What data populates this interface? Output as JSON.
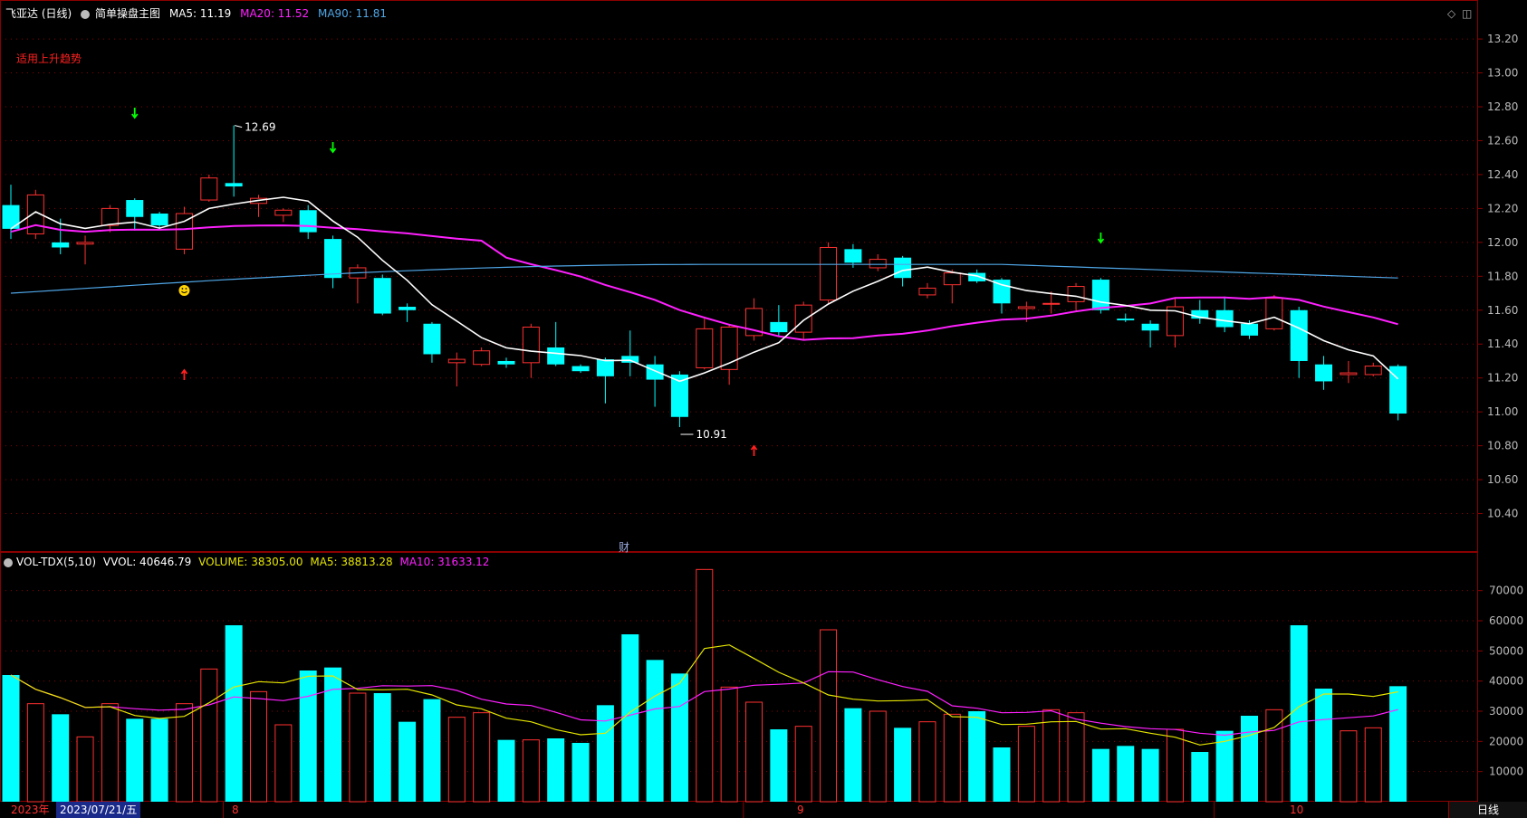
{
  "header": {
    "stock": "飞亚达 (日线)",
    "chart_name": "简单操盘主图",
    "ma5": "MA5: 11.19",
    "ma20": "MA20: 11.52",
    "ma90": "MA90: 11.81",
    "hint": "适用上升趋势"
  },
  "colors": {
    "up": "#ff3030",
    "down": "#00ffff",
    "ma5": "#ffffff",
    "ma20": "#ff20ff",
    "ma90": "#4fa6e6",
    "grid": "#8b0000",
    "vol_ma5": "#e6e600",
    "vol_ma10": "#ff20ff",
    "axis_text": "#bbbbbb"
  },
  "price_axis": {
    "ticks": [
      "13.20",
      "13.00",
      "12.80",
      "12.60",
      "12.40",
      "12.20",
      "12.00",
      "11.80",
      "11.60",
      "11.40",
      "11.20",
      "11.00",
      "10.80",
      "10.60",
      "10.40"
    ]
  },
  "annotations": {
    "high": "12.69",
    "low": "10.91",
    "finance_marker": "财"
  },
  "volume_header": {
    "name": "VOL-TDX(5,10)",
    "vvol": "VVOL: 40646.79",
    "volume": "VOLUME: 38305.00",
    "ma5": "MA5: 38813.28",
    "ma10": "MA10: 31633.12"
  },
  "volume_axis": {
    "ticks": [
      "70000",
      "60000",
      "50000",
      "40000",
      "30000",
      "20000",
      "10000"
    ]
  },
  "date_bar": {
    "year": "2023年",
    "selected_date": "2023/07/21/五",
    "month_marks": [
      "8",
      "9",
      "10"
    ]
  },
  "period_label": "日线",
  "chart_data": {
    "type": "candlestick",
    "ylim": [
      10.2,
      13.35
    ],
    "vol_ylim": [
      0,
      78000
    ],
    "candles": [
      {
        "o": 12.22,
        "c": 12.08,
        "h": 12.34,
        "l": 12.02,
        "v": 42000
      },
      {
        "o": 12.05,
        "c": 12.28,
        "h": 12.31,
        "l": 12.02,
        "v": 32500
      },
      {
        "o": 12.0,
        "c": 11.97,
        "h": 12.14,
        "l": 11.93,
        "v": 29000
      },
      {
        "o": 11.99,
        "c": 12.0,
        "h": 12.04,
        "l": 11.87,
        "v": 21500
      },
      {
        "o": 12.1,
        "c": 12.2,
        "h": 12.22,
        "l": 12.06,
        "v": 32500
      },
      {
        "o": 12.25,
        "c": 12.15,
        "h": 12.26,
        "l": 12.07,
        "v": 27500
      },
      {
        "o": 12.17,
        "c": 12.1,
        "h": 12.18,
        "l": 12.08,
        "v": 27500
      },
      {
        "o": 11.96,
        "c": 12.17,
        "h": 12.21,
        "l": 11.93,
        "v": 32500
      },
      {
        "o": 12.25,
        "c": 12.38,
        "h": 12.4,
        "l": 12.24,
        "v": 44000
      },
      {
        "o": 12.35,
        "c": 12.33,
        "h": 12.69,
        "l": 12.27,
        "v": 58500
      },
      {
        "o": 12.23,
        "c": 12.26,
        "h": 12.28,
        "l": 12.15,
        "v": 36500
      },
      {
        "o": 12.16,
        "c": 12.19,
        "h": 12.2,
        "l": 12.12,
        "v": 25500
      },
      {
        "o": 12.19,
        "c": 12.06,
        "h": 12.22,
        "l": 12.02,
        "v": 43500
      },
      {
        "o": 12.02,
        "c": 11.79,
        "h": 12.04,
        "l": 11.73,
        "v": 44500
      },
      {
        "o": 11.79,
        "c": 11.85,
        "h": 11.87,
        "l": 11.64,
        "v": 36000
      },
      {
        "o": 11.79,
        "c": 11.58,
        "h": 11.81,
        "l": 11.57,
        "v": 36000
      },
      {
        "o": 11.62,
        "c": 11.6,
        "h": 11.64,
        "l": 11.53,
        "v": 26500
      },
      {
        "o": 11.52,
        "c": 11.34,
        "h": 11.53,
        "l": 11.29,
        "v": 34000
      },
      {
        "o": 11.29,
        "c": 11.31,
        "h": 11.35,
        "l": 11.15,
        "v": 28000
      },
      {
        "o": 11.28,
        "c": 11.36,
        "h": 11.38,
        "l": 11.27,
        "v": 29500
      },
      {
        "o": 11.3,
        "c": 11.28,
        "h": 11.32,
        "l": 11.26,
        "v": 20500
      },
      {
        "o": 11.29,
        "c": 11.5,
        "h": 11.52,
        "l": 11.2,
        "v": 20500
      },
      {
        "o": 11.38,
        "c": 11.28,
        "h": 11.53,
        "l": 11.27,
        "v": 21000
      },
      {
        "o": 11.27,
        "c": 11.24,
        "h": 11.28,
        "l": 11.23,
        "v": 19500
      },
      {
        "o": 11.31,
        "c": 11.21,
        "h": 11.32,
        "l": 11.05,
        "v": 32000
      },
      {
        "o": 11.33,
        "c": 11.29,
        "h": 11.48,
        "l": 11.21,
        "v": 55500
      },
      {
        "o": 11.28,
        "c": 11.19,
        "h": 11.33,
        "l": 11.03,
        "v": 47000
      },
      {
        "o": 11.22,
        "c": 10.97,
        "h": 11.24,
        "l": 10.91,
        "v": 42500
      },
      {
        "o": 11.26,
        "c": 11.49,
        "h": 11.55,
        "l": 11.25,
        "v": 77000
      },
      {
        "o": 11.25,
        "c": 11.5,
        "h": 11.52,
        "l": 11.16,
        "v": 38000
      },
      {
        "o": 11.45,
        "c": 11.61,
        "h": 11.67,
        "l": 11.42,
        "v": 33000
      },
      {
        "o": 11.53,
        "c": 11.47,
        "h": 11.63,
        "l": 11.45,
        "v": 24000
      },
      {
        "o": 11.47,
        "c": 11.63,
        "h": 11.65,
        "l": 11.43,
        "v": 25000
      },
      {
        "o": 11.66,
        "c": 11.97,
        "h": 12.0,
        "l": 11.64,
        "v": 57000
      },
      {
        "o": 11.96,
        "c": 11.88,
        "h": 11.99,
        "l": 11.85,
        "v": 31000
      },
      {
        "o": 11.85,
        "c": 11.9,
        "h": 11.93,
        "l": 11.83,
        "v": 30000
      },
      {
        "o": 11.91,
        "c": 11.79,
        "h": 11.92,
        "l": 11.74,
        "v": 24500
      },
      {
        "o": 11.69,
        "c": 11.73,
        "h": 11.76,
        "l": 11.67,
        "v": 26500
      },
      {
        "o": 11.75,
        "c": 11.82,
        "h": 11.84,
        "l": 11.64,
        "v": 29000
      },
      {
        "o": 11.82,
        "c": 11.77,
        "h": 11.84,
        "l": 11.76,
        "v": 30000
      },
      {
        "o": 11.78,
        "c": 11.64,
        "h": 11.79,
        "l": 11.58,
        "v": 18000
      },
      {
        "o": 11.61,
        "c": 11.62,
        "h": 11.65,
        "l": 11.53,
        "v": 25000
      },
      {
        "o": 11.64,
        "c": 11.64,
        "h": 11.71,
        "l": 11.58,
        "v": 30500
      },
      {
        "o": 11.65,
        "c": 11.74,
        "h": 11.76,
        "l": 11.6,
        "v": 29500
      },
      {
        "o": 11.78,
        "c": 11.6,
        "h": 11.79,
        "l": 11.58,
        "v": 17500
      },
      {
        "o": 11.55,
        "c": 11.54,
        "h": 11.58,
        "l": 11.53,
        "v": 18500
      },
      {
        "o": 11.52,
        "c": 11.48,
        "h": 11.54,
        "l": 11.38,
        "v": 17500
      },
      {
        "o": 11.45,
        "c": 11.62,
        "h": 11.67,
        "l": 11.38,
        "v": 24000
      },
      {
        "o": 11.6,
        "c": 11.55,
        "h": 11.66,
        "l": 11.52,
        "v": 16500
      },
      {
        "o": 11.6,
        "c": 11.5,
        "h": 11.68,
        "l": 11.47,
        "v": 23500
      },
      {
        "o": 11.52,
        "c": 11.45,
        "h": 11.54,
        "l": 11.43,
        "v": 28500
      },
      {
        "o": 11.49,
        "c": 11.67,
        "h": 11.69,
        "l": 11.48,
        "v": 30500
      },
      {
        "o": 11.6,
        "c": 11.3,
        "h": 11.62,
        "l": 11.2,
        "v": 58500
      },
      {
        "o": 11.28,
        "c": 11.18,
        "h": 11.33,
        "l": 11.13,
        "v": 37500
      },
      {
        "o": 11.22,
        "c": 11.23,
        "h": 11.3,
        "l": 11.17,
        "v": 23500
      },
      {
        "o": 11.22,
        "c": 11.27,
        "h": 11.29,
        "l": 11.21,
        "v": 24500
      },
      {
        "o": 11.27,
        "c": 10.99,
        "h": 11.28,
        "l": 10.95,
        "v": 38300
      }
    ]
  }
}
